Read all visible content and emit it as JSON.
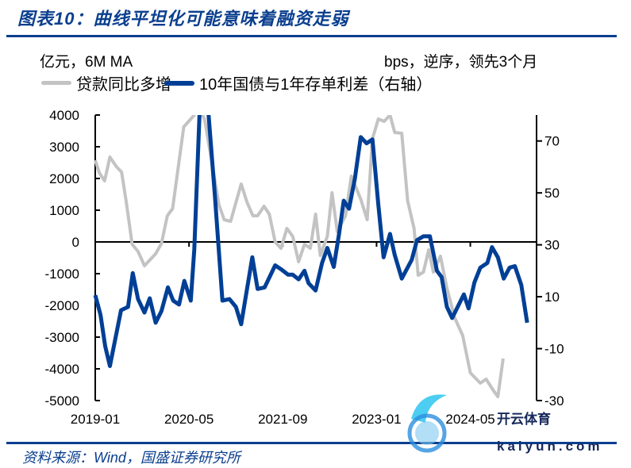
{
  "header": {
    "title": "图表10：曲线平坦化可能意味着融资走弱"
  },
  "units": {
    "left": "亿元，6M MA",
    "right": "bps，逆序，领先3个月"
  },
  "footer": {
    "source": "资料来源：Wind，国盛证券研究所"
  },
  "watermark": {
    "brand": "开云体育",
    "domain": "kaiyun.com"
  },
  "colors": {
    "accent": "#0b3f8f",
    "series_loan": "#c3c3c3",
    "series_spread": "#003f96"
  },
  "chart_data": {
    "type": "line",
    "title": "曲线平坦化可能意味着融资走弱",
    "x_unit": "months since 2019-01",
    "x_tick_labels": [
      "2019-01",
      "2020-05",
      "2021-09",
      "2023-01",
      "2024-05"
    ],
    "x_tick_months": [
      0,
      16,
      32,
      48,
      64
    ],
    "x_range": [
      0,
      75.3
    ],
    "left_axis": {
      "label": "亿元，6M MA",
      "ylim": [
        -5000,
        4000
      ],
      "ticks": [
        4000,
        3000,
        2000,
        1000,
        0,
        -1000,
        -2000,
        -3000,
        -4000,
        -5000
      ]
    },
    "right_axis": {
      "label": "bps，逆序，领先3个月",
      "ylim": [
        -30,
        80
      ],
      "ticks": [
        70,
        50,
        30,
        10,
        -10,
        -30
      ]
    },
    "grid": false,
    "legend_position": "top",
    "series": [
      {
        "name": "贷款同比多增",
        "axis": "left",
        "points": [
          [
            0,
            2575
          ],
          [
            0.7,
            2175
          ],
          [
            1.6,
            1925
          ],
          [
            2.5,
            2675
          ],
          [
            3.6,
            2375
          ],
          [
            4.5,
            2200
          ],
          [
            5.3,
            1250
          ],
          [
            6.3,
            -75
          ],
          [
            7.3,
            -300
          ],
          [
            8.4,
            -750
          ],
          [
            10.3,
            -375
          ],
          [
            11.3,
            -50
          ],
          [
            12.3,
            825
          ],
          [
            13.2,
            1050
          ],
          [
            15.1,
            3625
          ],
          [
            16.9,
            4000
          ],
          [
            17.7,
            4300
          ],
          [
            18.7,
            3825
          ],
          [
            21.1,
            1175
          ],
          [
            22,
            700
          ],
          [
            23.1,
            650
          ],
          [
            24.9,
            1825
          ],
          [
            25.9,
            1250
          ],
          [
            26.9,
            825
          ],
          [
            27.7,
            825
          ],
          [
            28.8,
            1125
          ],
          [
            29.7,
            875
          ],
          [
            30.7,
            0
          ],
          [
            31.7,
            -200
          ],
          [
            32.7,
            425
          ],
          [
            33.7,
            175
          ],
          [
            34.7,
            -625
          ],
          [
            35.7,
            -75
          ],
          [
            36.7,
            -200
          ],
          [
            37.6,
            875
          ],
          [
            38.4,
            -425
          ],
          [
            39.6,
            175
          ],
          [
            40.4,
            1550
          ],
          [
            41.3,
            325
          ],
          [
            42.7,
            825
          ],
          [
            43.7,
            2075
          ],
          [
            45.3,
            1350
          ],
          [
            46.4,
            700
          ],
          [
            47.3,
            3250
          ],
          [
            48.3,
            3875
          ],
          [
            49.3,
            3800
          ],
          [
            50.3,
            4000
          ],
          [
            51.1,
            3450
          ],
          [
            52.3,
            3425
          ],
          [
            53.3,
            1300
          ],
          [
            54.4,
            425
          ],
          [
            55.1,
            -1050
          ],
          [
            56,
            -950
          ],
          [
            56.9,
            -250
          ],
          [
            57.7,
            -950
          ],
          [
            58.9,
            -450
          ],
          [
            60,
            -1450
          ],
          [
            61.3,
            -2375
          ],
          [
            62.7,
            -2950
          ],
          [
            64,
            -4125
          ],
          [
            65.7,
            -4450
          ],
          [
            66.7,
            -4325
          ],
          [
            68,
            -4700
          ],
          [
            68.7,
            -4875
          ],
          [
            69.6,
            -3675
          ]
        ]
      },
      {
        "name": "10年国债与1年存单利差（右轴）",
        "axis": "right",
        "points": [
          [
            0,
            10.6
          ],
          [
            0.9,
            3.0
          ],
          [
            1.7,
            -9.1
          ],
          [
            2.5,
            -16.7
          ],
          [
            4.4,
            4.8
          ],
          [
            5.6,
            6.1
          ],
          [
            6.4,
            19.1
          ],
          [
            7.3,
            9.1
          ],
          [
            8.4,
            3.9
          ],
          [
            9.3,
            9.4
          ],
          [
            10.3,
            0
          ],
          [
            11.3,
            4.5
          ],
          [
            12.4,
            13.6
          ],
          [
            13.3,
            8.5
          ],
          [
            14.3,
            7.0
          ],
          [
            15.2,
            16.1
          ],
          [
            16.3,
            8.5
          ],
          [
            16.9,
            28.2
          ],
          [
            18.3,
            110
          ],
          [
            20.4,
            49.4
          ],
          [
            21.7,
            8.5
          ],
          [
            22.9,
            9.1
          ],
          [
            24,
            6.1
          ],
          [
            24.9,
            -0.6
          ],
          [
            25.9,
            13.0
          ],
          [
            26.8,
            25.2
          ],
          [
            27.7,
            13.0
          ],
          [
            28.9,
            13.6
          ],
          [
            30.7,
            22.1
          ],
          [
            31.7,
            20.6
          ],
          [
            32.9,
            18.5
          ],
          [
            33.7,
            18.5
          ],
          [
            34.7,
            16.7
          ],
          [
            35.7,
            20.0
          ],
          [
            36.4,
            15.2
          ],
          [
            37.6,
            12.4
          ],
          [
            38.7,
            23.0
          ],
          [
            39.6,
            28.8
          ],
          [
            40.7,
            21.5
          ],
          [
            41.6,
            34.2
          ],
          [
            42.4,
            47.0
          ],
          [
            43.3,
            43.9
          ],
          [
            44.3,
            55.5
          ],
          [
            45.3,
            71.5
          ],
          [
            46.3,
            69.1
          ],
          [
            47.3,
            70.6
          ],
          [
            48.3,
            45.5
          ],
          [
            49.2,
            25.2
          ],
          [
            50.3,
            34.2
          ],
          [
            51.1,
            26.1
          ],
          [
            52.3,
            17.0
          ],
          [
            54,
            24.2
          ],
          [
            54.9,
            31.8
          ],
          [
            56,
            33.3
          ],
          [
            57.1,
            33.3
          ],
          [
            58.3,
            20.0
          ],
          [
            59.1,
            17.6
          ],
          [
            60,
            6.1
          ],
          [
            60.9,
            1.8
          ],
          [
            62.9,
            10.9
          ],
          [
            63.7,
            5.5
          ],
          [
            64.7,
            15.5
          ],
          [
            65.7,
            21.2
          ],
          [
            66.9,
            23.0
          ],
          [
            67.7,
            29.1
          ],
          [
            68.7,
            25.2
          ],
          [
            69.7,
            17.0
          ],
          [
            70.7,
            21.2
          ],
          [
            71.6,
            21.8
          ],
          [
            72.7,
            14.5
          ],
          [
            73.7,
            0
          ]
        ]
      }
    ]
  }
}
